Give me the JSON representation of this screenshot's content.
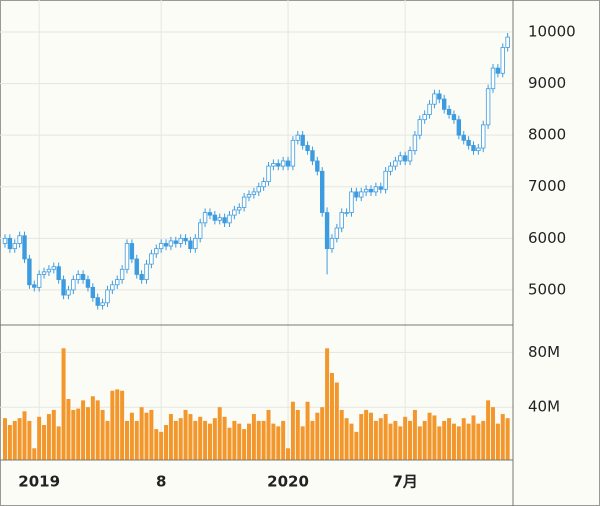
{
  "chart_data": {
    "type": "candlestick",
    "up_color": "#ffffff",
    "down_color": "#3d9be0",
    "edge_color": "#3d9be0",
    "volume_color": "#f3972c",
    "grid": true,
    "categories": [
      null,
      null,
      null,
      null,
      null,
      null,
      null,
      "2019",
      null,
      null,
      null,
      null,
      null,
      null,
      null,
      null,
      null,
      null,
      null,
      null,
      null,
      null,
      null,
      null,
      null,
      null,
      null,
      null,
      null,
      null,
      null,
      null,
      "8",
      null,
      null,
      null,
      null,
      null,
      null,
      null,
      null,
      null,
      null,
      null,
      null,
      null,
      null,
      null,
      null,
      null,
      null,
      null,
      null,
      null,
      null,
      null,
      null,
      null,
      "2020",
      null,
      null,
      null,
      null,
      null,
      null,
      null,
      null,
      null,
      null,
      null,
      null,
      null,
      null,
      null,
      null,
      null,
      null,
      null,
      null,
      null,
      null,
      null,
      "7月",
      null,
      null,
      null,
      null,
      null,
      null,
      null,
      null,
      null,
      null,
      null,
      null,
      null,
      null,
      null,
      null,
      null,
      null,
      null,
      null,
      null
    ],
    "open": [
      5900,
      6000,
      5800,
      5900,
      6050,
      5600,
      5100,
      5050,
      5300,
      5350,
      5400,
      5450,
      5200,
      4900,
      5000,
      5200,
      5300,
      5200,
      5050,
      4850,
      4700,
      4750,
      5000,
      5100,
      5200,
      5400,
      5900,
      5600,
      5300,
      5200,
      5500,
      5700,
      5800,
      5900,
      5850,
      5950,
      5900,
      6000,
      5950,
      5800,
      6000,
      6300,
      6500,
      6450,
      6350,
      6400,
      6300,
      6450,
      6550,
      6600,
      6800,
      6850,
      6900,
      7000,
      7100,
      7400,
      7450,
      7400,
      7500,
      7400,
      7900,
      8000,
      7800,
      7700,
      7500,
      7300,
      6500,
      5800,
      6000,
      6200,
      6500,
      6500,
      6900,
      6800,
      6900,
      6950,
      6900,
      7000,
      6950,
      7300,
      7400,
      7500,
      7600,
      7500,
      7700,
      8000,
      8300,
      8400,
      8600,
      8800,
      8700,
      8500,
      8400,
      8300,
      8000,
      7900,
      7800,
      7700,
      7750,
      8200,
      8900,
      9300,
      9200,
      9700
    ],
    "high": [
      6080,
      6080,
      5980,
      6130,
      6130,
      5680,
      5180,
      5380,
      5430,
      5480,
      5530,
      5530,
      5280,
      5080,
      5280,
      5380,
      5380,
      5280,
      5130,
      4930,
      4830,
      5080,
      5180,
      5280,
      5480,
      5980,
      5980,
      5680,
      5380,
      5580,
      5780,
      5880,
      5980,
      5980,
      6030,
      6030,
      6080,
      6080,
      6030,
      6080,
      6380,
      6580,
      6580,
      6530,
      6480,
      6480,
      6530,
      6630,
      6680,
      6880,
      6930,
      6980,
      7080,
      7180,
      7480,
      7530,
      7530,
      7580,
      7580,
      7980,
      8080,
      8080,
      7880,
      7780,
      7580,
      7380,
      6600,
      6080,
      6280,
      6580,
      6580,
      6980,
      6980,
      6980,
      7030,
      7030,
      7080,
      7080,
      7380,
      7480,
      7580,
      7680,
      7680,
      7780,
      8080,
      8380,
      8480,
      8680,
      8880,
      8880,
      8780,
      8580,
      8480,
      8380,
      8080,
      7980,
      7880,
      7830,
      8280,
      8980,
      9380,
      9380,
      9780,
      9980
    ],
    "low": [
      5820,
      5720,
      5720,
      5820,
      5520,
      5020,
      4970,
      4970,
      5220,
      5270,
      5320,
      5120,
      4820,
      4820,
      4920,
      5120,
      5120,
      4970,
      4770,
      4620,
      4620,
      4670,
      4920,
      5020,
      5120,
      5320,
      5520,
      5220,
      5120,
      5120,
      5420,
      5620,
      5720,
      5770,
      5770,
      5820,
      5820,
      5870,
      5720,
      5720,
      5920,
      6220,
      6370,
      6270,
      6270,
      6220,
      6220,
      6370,
      6470,
      6520,
      6720,
      6770,
      6820,
      6920,
      7020,
      7320,
      7320,
      7320,
      7320,
      7320,
      7820,
      7720,
      7620,
      7420,
      7220,
      6420,
      5300,
      5720,
      5920,
      6120,
      6420,
      6420,
      6720,
      6720,
      6820,
      6820,
      6820,
      6870,
      6870,
      7220,
      7320,
      7420,
      7420,
      7420,
      7620,
      7920,
      8220,
      8320,
      8520,
      8620,
      8420,
      8320,
      8220,
      7920,
      7820,
      7720,
      7620,
      7620,
      7670,
      8120,
      8820,
      9120,
      9120,
      9620
    ],
    "close": [
      6000,
      5800,
      5900,
      6050,
      5600,
      5100,
      5050,
      5300,
      5350,
      5400,
      5450,
      5200,
      4900,
      5000,
      5200,
      5300,
      5200,
      5050,
      4850,
      4700,
      4750,
      5000,
      5100,
      5200,
      5400,
      5900,
      5600,
      5300,
      5200,
      5500,
      5700,
      5800,
      5900,
      5850,
      5950,
      5900,
      6000,
      5950,
      5800,
      6000,
      6300,
      6500,
      6450,
      6350,
      6400,
      6300,
      6450,
      6550,
      6600,
      6800,
      6850,
      6900,
      7000,
      7100,
      7400,
      7450,
      7400,
      7500,
      7400,
      7900,
      8000,
      7800,
      7700,
      7500,
      7300,
      6500,
      5800,
      6000,
      6200,
      6500,
      6500,
      6900,
      6800,
      6900,
      6950,
      6900,
      7000,
      6950,
      7300,
      7400,
      7500,
      7600,
      7500,
      7700,
      8000,
      8300,
      8400,
      8600,
      8800,
      8700,
      8500,
      8400,
      8300,
      8000,
      7900,
      7800,
      7700,
      7750,
      8200,
      8900,
      9300,
      9200,
      9700,
      9900
    ],
    "volume": [
      32,
      27,
      30,
      32,
      37,
      30,
      10,
      33,
      27,
      35,
      38,
      26,
      83,
      46,
      38,
      39,
      45,
      40,
      48,
      45,
      38,
      30,
      52,
      53,
      52,
      30,
      36,
      30,
      40,
      36,
      38,
      24,
      22,
      27,
      35,
      30,
      32,
      38,
      35,
      30,
      33,
      30,
      28,
      32,
      40,
      33,
      25,
      30,
      28,
      24,
      28,
      35,
      30,
      30,
      38,
      28,
      26,
      30,
      10,
      44,
      38,
      26,
      44,
      30,
      36,
      40,
      83,
      65,
      58,
      38,
      32,
      28,
      22,
      35,
      38,
      36,
      30,
      32,
      35,
      28,
      30,
      26,
      33,
      30,
      38,
      26,
      30,
      36,
      34,
      26,
      30,
      32,
      28,
      26,
      32,
      28,
      34,
      28,
      30,
      45,
      40,
      28,
      35,
      32
    ],
    "ylim": [
      4320,
      10620
    ],
    "yticks": [
      5000,
      6000,
      7000,
      8000,
      9000,
      10000
    ],
    "volume_ylim": [
      0,
      100
    ],
    "volume_ticks": [
      {
        "value": 40,
        "label": "40M"
      },
      {
        "value": 80,
        "label": "80M"
      }
    ]
  }
}
